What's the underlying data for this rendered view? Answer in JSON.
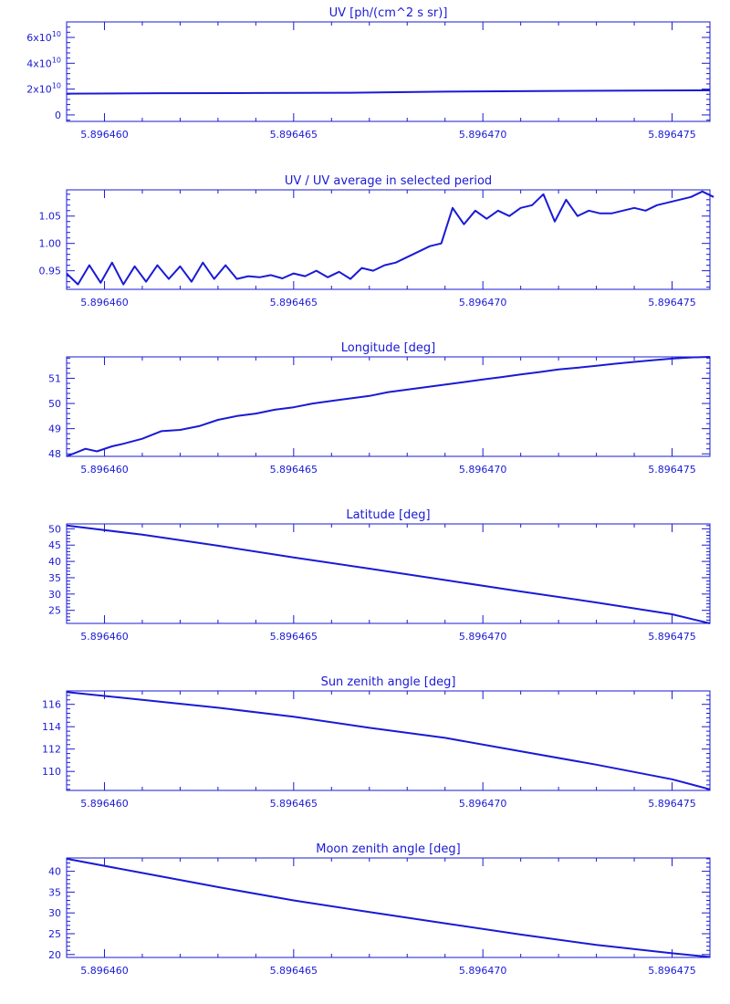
{
  "color": "#1a1ad6",
  "chart_data": [
    {
      "type": "line",
      "title": "UV [ph/(cm^2 s sr)]",
      "xlim": [
        5.896459,
        5.896476
      ],
      "ylim": [
        -5000000000,
        72000000000
      ],
      "xticks": [
        5.89646,
        5.896465,
        5.89647,
        5.896475
      ],
      "xtick_labels": [
        "5.896460",
        "5.896465",
        "5.896470",
        "5.896475"
      ],
      "yticks": [
        0,
        20000000000,
        40000000000,
        60000000000
      ],
      "ytick_labels": [
        "0",
        "2x10^10",
        "4x10^10",
        "6x10^10"
      ],
      "x": [
        5.896459,
        5.8964615,
        5.896464,
        5.8964665,
        5.896469,
        5.8964715,
        5.896474,
        5.896476
      ],
      "y": [
        16500000000,
        16800000000,
        17000000000,
        17200000000,
        18000000000,
        18500000000,
        18800000000,
        19000000000
      ]
    },
    {
      "type": "line",
      "title": "UV / UV average in selected period",
      "xlim": [
        5.896459,
        5.896476
      ],
      "ylim": [
        0.916,
        1.098
      ],
      "xticks": [
        5.89646,
        5.896465,
        5.89647,
        5.896475
      ],
      "xtick_labels": [
        "5.896460",
        "5.896465",
        "5.896470",
        "5.896475"
      ],
      "yticks": [
        0.95,
        1.0,
        1.05
      ],
      "ytick_labels": [
        "0.95",
        "1.00",
        "1.05"
      ],
      "x": [
        5.896459,
        5.8964593,
        5.8964596,
        5.8964599,
        5.8964602,
        5.8964605,
        5.8964608,
        5.8964611,
        5.8964614,
        5.8964617,
        5.896462,
        5.8964623,
        5.8964626,
        5.8964629,
        5.8964632,
        5.8964635,
        5.8964638,
        5.8964641,
        5.8964644,
        5.8964647,
        5.896465,
        5.8964653,
        5.8964656,
        5.8964659,
        5.8964662,
        5.8964665,
        5.8964668,
        5.8964671,
        5.8964674,
        5.8964677,
        5.896468,
        5.8964683,
        5.8964686,
        5.8964689,
        5.8964692,
        5.8964695,
        5.8964698,
        5.8964701,
        5.8964704,
        5.8964707,
        5.896471,
        5.8964713,
        5.8964716,
        5.8964719,
        5.8964722,
        5.8964725,
        5.8964728,
        5.8964731,
        5.8964734,
        5.8964737,
        5.896474,
        5.8964743,
        5.8964746,
        5.8964749,
        5.8964752,
        5.8964755,
        5.8964758,
        5.8964761
      ],
      "y": [
        0.945,
        0.925,
        0.96,
        0.928,
        0.965,
        0.925,
        0.958,
        0.93,
        0.96,
        0.935,
        0.958,
        0.93,
        0.965,
        0.935,
        0.96,
        0.935,
        0.94,
        0.938,
        0.942,
        0.936,
        0.945,
        0.94,
        0.95,
        0.938,
        0.948,
        0.935,
        0.955,
        0.95,
        0.96,
        0.965,
        0.975,
        0.985,
        0.995,
        1.0,
        1.065,
        1.035,
        1.06,
        1.045,
        1.06,
        1.05,
        1.065,
        1.07,
        1.09,
        1.04,
        1.08,
        1.05,
        1.06,
        1.055,
        1.055,
        1.06,
        1.065,
        1.06,
        1.07,
        1.075,
        1.08,
        1.085,
        1.095,
        1.085
      ]
    },
    {
      "type": "line",
      "title": "Longitude [deg]",
      "xlim": [
        5.896459,
        5.896476
      ],
      "ylim": [
        47.9,
        51.85
      ],
      "xticks": [
        5.89646,
        5.896465,
        5.89647,
        5.896475
      ],
      "xtick_labels": [
        "5.896460",
        "5.896465",
        "5.896470",
        "5.896475"
      ],
      "yticks": [
        48,
        49,
        50,
        51
      ],
      "ytick_labels": [
        "48",
        "49",
        "50",
        "51"
      ],
      "x": [
        5.896459,
        5.8964595,
        5.8964598,
        5.8964602,
        5.8964605,
        5.896461,
        5.8964615,
        5.896462,
        5.8964625,
        5.896463,
        5.8964635,
        5.896464,
        5.8964645,
        5.896465,
        5.8964655,
        5.896466,
        5.8964665,
        5.896467,
        5.8964675,
        5.896468,
        5.8964685,
        5.896469,
        5.8964695,
        5.89647,
        5.8964705,
        5.896471,
        5.8964715,
        5.896472,
        5.8964725,
        5.896473,
        5.8964735,
        5.896474,
        5.8964745,
        5.896475,
        5.8964755,
        5.896476
      ],
      "y": [
        47.9,
        48.2,
        48.1,
        48.3,
        48.4,
        48.6,
        48.9,
        48.95,
        49.1,
        49.35,
        49.5,
        49.6,
        49.75,
        49.85,
        50.0,
        50.1,
        50.2,
        50.3,
        50.45,
        50.55,
        50.65,
        50.75,
        50.85,
        50.95,
        51.05,
        51.15,
        51.25,
        51.35,
        51.42,
        51.5,
        51.58,
        51.65,
        51.72,
        51.78,
        51.83,
        51.85
      ]
    },
    {
      "type": "line",
      "title": "Latitude [deg]",
      "xlim": [
        5.896459,
        5.896476
      ],
      "ylim": [
        21,
        51.5
      ],
      "xticks": [
        5.89646,
        5.896465,
        5.89647,
        5.896475
      ],
      "xtick_labels": [
        "5.896460",
        "5.896465",
        "5.896470",
        "5.896475"
      ],
      "yticks": [
        25,
        30,
        35,
        40,
        45,
        50
      ],
      "ytick_labels": [
        "25",
        "30",
        "35",
        "40",
        "45",
        "50"
      ],
      "x": [
        5.896459,
        5.896461,
        5.896463,
        5.896465,
        5.896467,
        5.896469,
        5.896471,
        5.896473,
        5.896475,
        5.896476
      ],
      "y": [
        51.0,
        48.2,
        44.8,
        41.2,
        37.8,
        34.3,
        30.8,
        27.4,
        23.8,
        21.0
      ]
    },
    {
      "type": "line",
      "title": "Sun zenith angle [deg]",
      "xlim": [
        5.896459,
        5.896476
      ],
      "ylim": [
        108.3,
        117.2
      ],
      "xticks": [
        5.89646,
        5.896465,
        5.89647,
        5.896475
      ],
      "xtick_labels": [
        "5.896460",
        "5.896465",
        "5.896470",
        "5.896475"
      ],
      "yticks": [
        110,
        112,
        114,
        116
      ],
      "ytick_labels": [
        "110",
        "112",
        "114",
        "116"
      ],
      "x": [
        5.896459,
        5.896461,
        5.896463,
        5.896465,
        5.896467,
        5.896469,
        5.896471,
        5.896473,
        5.896475,
        5.896476
      ],
      "y": [
        117.1,
        116.4,
        115.7,
        114.9,
        113.9,
        113.0,
        111.8,
        110.6,
        109.3,
        108.4
      ]
    },
    {
      "type": "line",
      "title": "Moon zenith angle [deg]",
      "xlim": [
        5.896459,
        5.896476
      ],
      "ylim": [
        19.3,
        43.2
      ],
      "xticks": [
        5.89646,
        5.896465,
        5.89647,
        5.896475
      ],
      "xtick_labels": [
        "5.896460",
        "5.896465",
        "5.896470",
        "5.896475"
      ],
      "yticks": [
        20,
        25,
        30,
        35,
        40
      ],
      "ytick_labels": [
        "20",
        "25",
        "30",
        "35",
        "40"
      ],
      "x": [
        5.896459,
        5.896461,
        5.896463,
        5.896465,
        5.896467,
        5.896469,
        5.896471,
        5.896473,
        5.896475,
        5.896476
      ],
      "y": [
        43.0,
        39.6,
        36.2,
        33.0,
        30.2,
        27.5,
        24.8,
        22.3,
        20.3,
        19.4
      ]
    }
  ]
}
